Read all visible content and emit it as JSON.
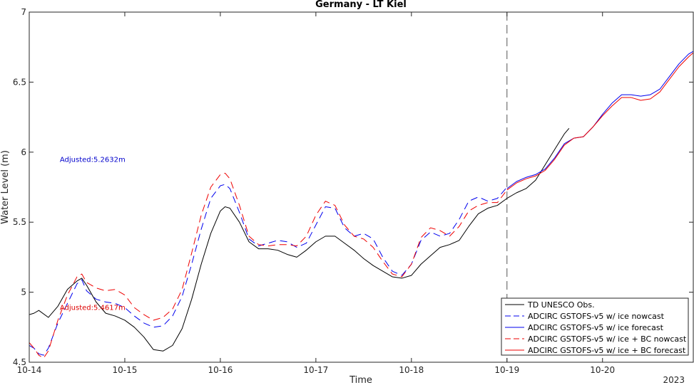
{
  "chart_data": {
    "type": "line",
    "title": "Germany - LT Kiel",
    "xlabel": "Time",
    "ylabel": "Water Level (m)",
    "xlim": [
      0,
      6.95
    ],
    "ylim": [
      4.5,
      7.0
    ],
    "x_ticks": [
      {
        "x": 0,
        "label": "10-14"
      },
      {
        "x": 1,
        "label": "10-15"
      },
      {
        "x": 2,
        "label": "10-16"
      },
      {
        "x": 3,
        "label": "10-17"
      },
      {
        "x": 4,
        "label": "10-18"
      },
      {
        "x": 5,
        "label": "10-19"
      },
      {
        "x": 6,
        "label": "10-20"
      }
    ],
    "x_corner_label": "2023",
    "y_ticks": [
      4.5,
      5,
      5.5,
      6,
      6.5,
      7
    ],
    "grid": false,
    "legend_position": "bottom-right",
    "vertical_line_x": 5.0,
    "annotations": [
      {
        "text": "Adjusted:5.2632m",
        "x": 0.32,
        "y": 5.95,
        "color": "#0000cc"
      },
      {
        "text": "Adjusted:5.4617m",
        "x": 0.32,
        "y": 4.895,
        "color": "#dd0000"
      }
    ],
    "series": [
      {
        "name": "TD UNESCO Obs.",
        "color": "#000000",
        "dash": "solid",
        "x": [
          0,
          0.05,
          0.1,
          0.2,
          0.3,
          0.4,
          0.5,
          0.55,
          0.6,
          0.7,
          0.8,
          0.9,
          1.0,
          1.1,
          1.2,
          1.3,
          1.4,
          1.5,
          1.6,
          1.7,
          1.8,
          1.9,
          2.0,
          2.05,
          2.1,
          2.2,
          2.3,
          2.4,
          2.5,
          2.6,
          2.7,
          2.8,
          2.9,
          3.0,
          3.1,
          3.2,
          3.3,
          3.4,
          3.5,
          3.6,
          3.7,
          3.8,
          3.9,
          4.0,
          4.1,
          4.2,
          4.3,
          4.4,
          4.5,
          4.6,
          4.7,
          4.8,
          4.9,
          5.0,
          5.1,
          5.2,
          5.3,
          5.4,
          5.5,
          5.6,
          5.65
        ],
        "y": [
          4.84,
          4.85,
          4.87,
          4.82,
          4.9,
          5.02,
          5.08,
          5.1,
          5.05,
          4.93,
          4.85,
          4.83,
          4.8,
          4.75,
          4.68,
          4.59,
          4.58,
          4.62,
          4.74,
          4.95,
          5.2,
          5.42,
          5.58,
          5.61,
          5.6,
          5.5,
          5.36,
          5.31,
          5.31,
          5.3,
          5.27,
          5.25,
          5.3,
          5.36,
          5.4,
          5.4,
          5.35,
          5.3,
          5.24,
          5.19,
          5.15,
          5.11,
          5.1,
          5.12,
          5.2,
          5.26,
          5.32,
          5.34,
          5.37,
          5.47,
          5.56,
          5.6,
          5.62,
          5.67,
          5.71,
          5.74,
          5.8,
          5.91,
          6.02,
          6.13,
          6.17
        ]
      },
      {
        "name": "ADCIRC GSTOFS-v5 w/ ice nowcast",
        "color": "#0000ee",
        "dash": "dashed",
        "x": [
          0,
          0.05,
          0.1,
          0.15,
          0.2,
          0.3,
          0.4,
          0.5,
          0.55,
          0.6,
          0.7,
          0.8,
          0.9,
          1.0,
          1.1,
          1.2,
          1.3,
          1.4,
          1.5,
          1.6,
          1.7,
          1.8,
          1.9,
          2.0,
          2.05,
          2.1,
          2.2,
          2.3,
          2.4,
          2.5,
          2.6,
          2.7,
          2.8,
          2.9,
          3.0,
          3.1,
          3.2,
          3.3,
          3.4,
          3.5,
          3.6,
          3.7,
          3.8,
          3.9,
          4.0,
          4.1,
          4.2,
          4.3,
          4.4,
          4.5,
          4.6,
          4.7,
          4.8,
          4.9,
          5.0
        ],
        "y": [
          4.62,
          4.6,
          4.56,
          4.55,
          4.6,
          4.78,
          4.92,
          5.06,
          5.09,
          5.01,
          4.95,
          4.93,
          4.92,
          4.89,
          4.83,
          4.78,
          4.75,
          4.76,
          4.83,
          4.97,
          5.2,
          5.45,
          5.67,
          5.76,
          5.77,
          5.74,
          5.57,
          5.38,
          5.33,
          5.35,
          5.37,
          5.36,
          5.32,
          5.35,
          5.48,
          5.61,
          5.6,
          5.46,
          5.4,
          5.42,
          5.38,
          5.25,
          5.15,
          5.12,
          5.2,
          5.37,
          5.43,
          5.4,
          5.42,
          5.52,
          5.65,
          5.68,
          5.65,
          5.67,
          5.75
        ]
      },
      {
        "name": "ADCIRC GSTOFS-v5 w/ ice forecast",
        "color": "#0000ee",
        "dash": "solid",
        "x": [
          5.0,
          5.1,
          5.2,
          5.3,
          5.4,
          5.5,
          5.6,
          5.7,
          5.8,
          5.9,
          6.0,
          6.1,
          6.2,
          6.3,
          6.4,
          6.5,
          6.6,
          6.7,
          6.8,
          6.9,
          6.95
        ],
        "y": [
          5.74,
          5.79,
          5.82,
          5.84,
          5.88,
          5.96,
          6.06,
          6.1,
          6.11,
          6.18,
          6.27,
          6.35,
          6.41,
          6.41,
          6.4,
          6.41,
          6.45,
          6.54,
          6.63,
          6.7,
          6.72
        ]
      },
      {
        "name": "ADCIRC GSTOFS-v5 w/ ice + BC nowcast",
        "color": "#ee0000",
        "dash": "dashed",
        "x": [
          0,
          0.05,
          0.1,
          0.15,
          0.2,
          0.3,
          0.4,
          0.5,
          0.55,
          0.6,
          0.7,
          0.8,
          0.9,
          1.0,
          1.1,
          1.2,
          1.3,
          1.4,
          1.5,
          1.6,
          1.7,
          1.8,
          1.9,
          2.0,
          2.05,
          2.1,
          2.2,
          2.3,
          2.4,
          2.5,
          2.6,
          2.7,
          2.8,
          2.9,
          3.0,
          3.1,
          3.2,
          3.3,
          3.4,
          3.5,
          3.6,
          3.7,
          3.8,
          3.9,
          4.0,
          4.1,
          4.2,
          4.3,
          4.4,
          4.5,
          4.6,
          4.7,
          4.8,
          4.9,
          5.0
        ],
        "y": [
          4.64,
          4.6,
          4.55,
          4.53,
          4.58,
          4.8,
          4.98,
          5.11,
          5.13,
          5.07,
          5.03,
          5.01,
          5.02,
          4.98,
          4.89,
          4.84,
          4.8,
          4.82,
          4.88,
          5.02,
          5.28,
          5.55,
          5.75,
          5.84,
          5.85,
          5.81,
          5.62,
          5.4,
          5.34,
          5.33,
          5.34,
          5.34,
          5.33,
          5.4,
          5.55,
          5.65,
          5.62,
          5.48,
          5.4,
          5.38,
          5.32,
          5.22,
          5.13,
          5.11,
          5.2,
          5.39,
          5.46,
          5.44,
          5.4,
          5.47,
          5.58,
          5.62,
          5.64,
          5.64,
          5.73
        ]
      },
      {
        "name": "ADCIRC GSTOFS-v5 w/ ice + BC forecast",
        "color": "#ee0000",
        "dash": "solid",
        "x": [
          5.0,
          5.1,
          5.2,
          5.3,
          5.4,
          5.5,
          5.6,
          5.7,
          5.8,
          5.9,
          6.0,
          6.1,
          6.2,
          6.3,
          6.4,
          6.5,
          6.6,
          6.7,
          6.8,
          6.9,
          6.95
        ],
        "y": [
          5.73,
          5.78,
          5.81,
          5.83,
          5.87,
          5.95,
          6.05,
          6.1,
          6.11,
          6.18,
          6.26,
          6.33,
          6.39,
          6.39,
          6.37,
          6.38,
          6.43,
          6.52,
          6.61,
          6.68,
          6.71
        ]
      }
    ]
  }
}
